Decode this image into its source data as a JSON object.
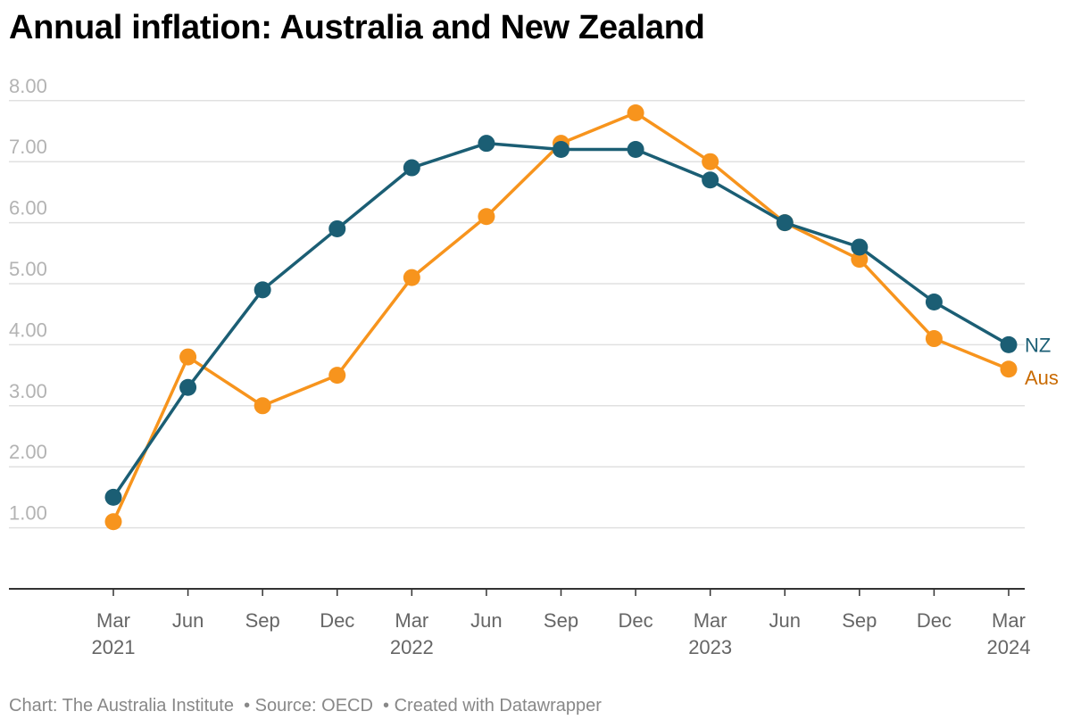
{
  "title": "Annual inflation: Australia and New Zealand",
  "footer": {
    "chart_credit": "Chart: The Australia Institute",
    "source": "Source: OECD",
    "created_with": "Created with Datawrapper"
  },
  "colors": {
    "nz": "#1b5e74",
    "aus": "#f7941d",
    "aus_label": "#c96a00",
    "grid": "#e0e0e0",
    "axis": "#333333"
  },
  "chart_data": {
    "type": "line",
    "title": "Annual inflation: Australia and New Zealand",
    "xlabel": "",
    "ylabel": "",
    "ylim": [
      0,
      8
    ],
    "yticks": [
      "1.00",
      "2.00",
      "3.00",
      "4.00",
      "5.00",
      "6.00",
      "7.00",
      "8.00"
    ],
    "ytick_values": [
      1,
      2,
      3,
      4,
      5,
      6,
      7,
      8
    ],
    "grid": true,
    "legend": "inline-right",
    "categories": [
      "Mar 2021",
      "Jun 2021",
      "Sep 2021",
      "Dec 2021",
      "Mar 2022",
      "Jun 2022",
      "Sep 2022",
      "Dec 2022",
      "Mar 2023",
      "Jun 2023",
      "Sep 2023",
      "Dec 2023",
      "Mar 2024"
    ],
    "xtick_labels": [
      {
        "month": "Mar",
        "year": "2021"
      },
      {
        "month": "Jun",
        "year": ""
      },
      {
        "month": "Sep",
        "year": ""
      },
      {
        "month": "Dec",
        "year": ""
      },
      {
        "month": "Mar",
        "year": "2022"
      },
      {
        "month": "Jun",
        "year": ""
      },
      {
        "month": "Sep",
        "year": ""
      },
      {
        "month": "Dec",
        "year": ""
      },
      {
        "month": "Mar",
        "year": "2023"
      },
      {
        "month": "Jun",
        "year": ""
      },
      {
        "month": "Sep",
        "year": ""
      },
      {
        "month": "Dec",
        "year": ""
      },
      {
        "month": "Mar",
        "year": "2024"
      }
    ],
    "series": [
      {
        "name": "NZ",
        "color": "#1b5e74",
        "values": [
          1.5,
          3.3,
          4.9,
          5.9,
          6.9,
          7.3,
          7.2,
          7.2,
          6.7,
          6.0,
          5.6,
          4.7,
          4.0
        ]
      },
      {
        "name": "Aus",
        "color": "#f7941d",
        "values": [
          1.1,
          3.8,
          3.0,
          3.5,
          5.1,
          6.1,
          7.3,
          7.8,
          7.0,
          6.0,
          5.4,
          4.1,
          3.6
        ]
      }
    ]
  }
}
